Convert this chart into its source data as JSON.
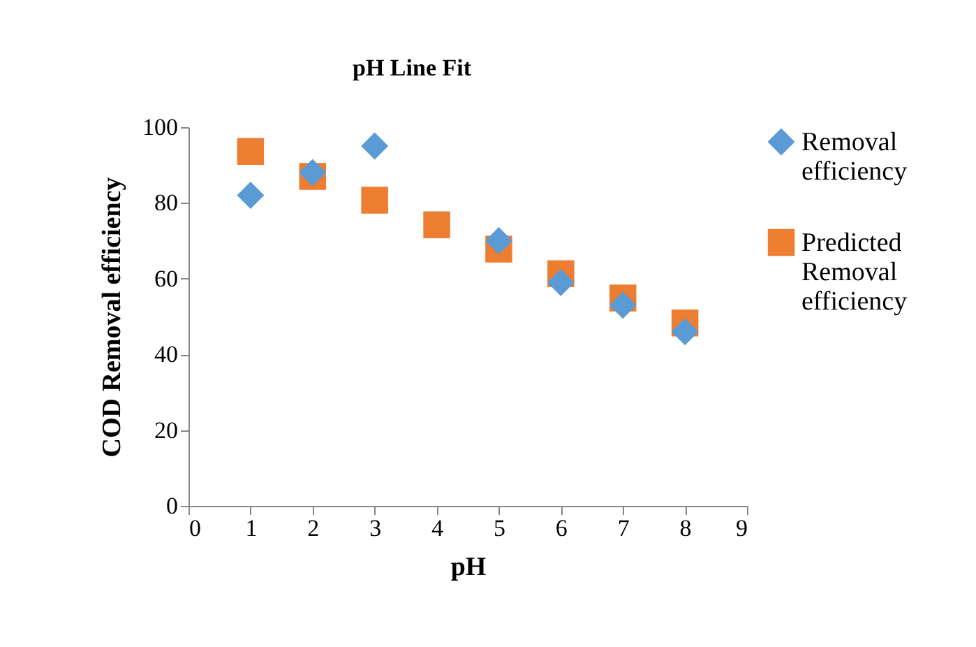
{
  "chart_data": {
    "type": "scatter",
    "title": "pH Line Fit",
    "xlabel": "pH",
    "ylabel": "COD Removal efficiency",
    "x": [
      1,
      2,
      3,
      4,
      5,
      6,
      7,
      8
    ],
    "series": [
      {
        "name": "Removal efficiency",
        "color": "#5b9bd5",
        "marker": "diamond",
        "values": [
          82,
          88,
          95,
          null,
          70,
          59,
          53,
          46
        ]
      },
      {
        "name": "Predicted Removal efficiency",
        "color": "#ed7d31",
        "marker": "square",
        "values": [
          93.6,
          87,
          80.7,
          74.2,
          67.8,
          61.3,
          54.9,
          48.3
        ]
      }
    ],
    "xlim": [
      0,
      9
    ],
    "xticks": [
      0,
      1,
      2,
      3,
      4,
      5,
      6,
      7,
      8,
      9
    ],
    "ylim": [
      0,
      100
    ],
    "yticks": [
      0,
      20,
      40,
      60,
      80,
      100
    ],
    "grid": false,
    "legend": "right"
  }
}
